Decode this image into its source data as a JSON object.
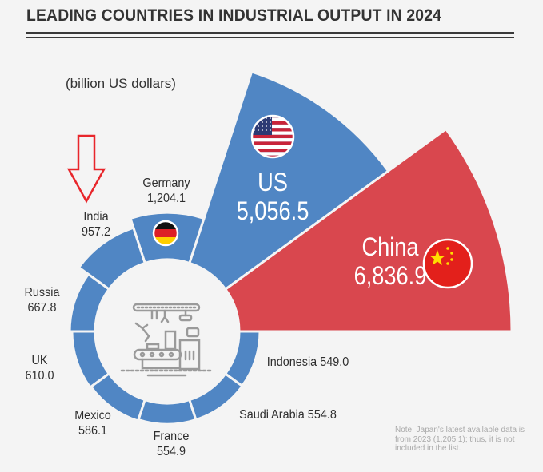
{
  "chart_data": {
    "type": "polar-area",
    "title": "LEADING COUNTRIES IN INDUSTRIAL OUTPUT IN 2024",
    "subtitle": "(billion US dollars)",
    "unit": "billion US dollars",
    "categories": [
      "China",
      "US",
      "Germany",
      "India",
      "Russia",
      "UK",
      "Mexico",
      "France",
      "Saudi Arabia",
      "Indonesia"
    ],
    "values": [
      6836.9,
      5056.5,
      1204.1,
      957.2,
      667.8,
      610.0,
      586.1,
      554.9,
      554.8,
      549.0
    ],
    "value_labels": [
      "6,836.9",
      "5,056.5",
      "1,204.1",
      "957.2",
      "667.8",
      "610.0",
      "586.1",
      "554.9",
      "554.8",
      "549.0"
    ],
    "highlight": {
      "category": "China",
      "color": "#d9474e"
    },
    "colors": {
      "default": "#5086c4",
      "highlight": "#d9474e",
      "arrow": "#e8262b"
    },
    "annotation": {
      "type": "arrow",
      "points_to": "India"
    },
    "center_icon": "factory-robot-assembly-line-icon",
    "flags": [
      "China",
      "US",
      "Germany"
    ],
    "note": "Note: Japan's latest available data is from 2023 (1,205.1); thus, it is not included in the list."
  }
}
